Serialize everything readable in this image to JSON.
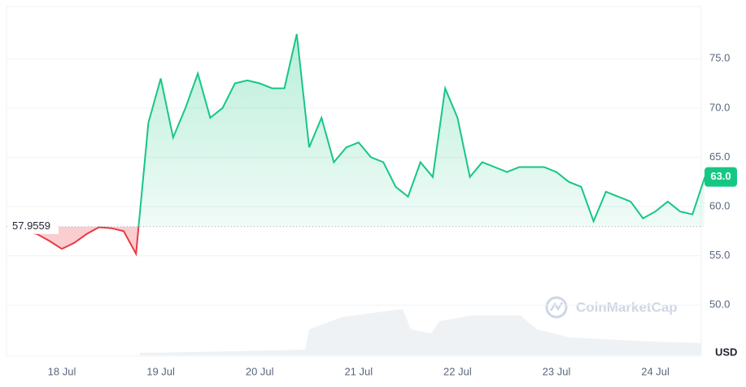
{
  "chart_data": {
    "type": "line",
    "categories": [
      null,
      null,
      null,
      null,
      "18 Jul",
      null,
      null,
      null,
      null,
      null,
      null,
      null,
      "19 Jul",
      null,
      null,
      null,
      null,
      null,
      null,
      null,
      "20 Jul",
      null,
      null,
      null,
      null,
      null,
      null,
      null,
      "21 Jul",
      null,
      null,
      null,
      null,
      null,
      null,
      null,
      "22 Jul",
      null,
      null,
      null,
      null,
      null,
      null,
      null,
      "23 Jul",
      null,
      null,
      null,
      null,
      null,
      null,
      null,
      "24 Jul",
      null,
      null,
      null,
      null
    ],
    "values": [
      57.9,
      57.5,
      57.2,
      56.5,
      55.7,
      56.3,
      57.2,
      57.9,
      57.8,
      57.5,
      55.2,
      68.5,
      73,
      67,
      70,
      73.5,
      69,
      70,
      72.5,
      72.8,
      72.5,
      72,
      72,
      77.5,
      66,
      69,
      64.5,
      66,
      66.5,
      65,
      64.5,
      62,
      61,
      64.5,
      63,
      72,
      69,
      63,
      64.5,
      64,
      63.5,
      64,
      64,
      64,
      63.5,
      62.5,
      62,
      58.5,
      61.5,
      61,
      60.5,
      58.8,
      59.5,
      60.5,
      59.5,
      59.2,
      63.0
    ],
    "value_labels": [
      null,
      null,
      null,
      null,
      null,
      null,
      null,
      null,
      null,
      null,
      null,
      null,
      null,
      null,
      null,
      null,
      null,
      null,
      null,
      null,
      null,
      null,
      null,
      null,
      null,
      null,
      null,
      null,
      null,
      null,
      null,
      null,
      null,
      null,
      null,
      null,
      null,
      null,
      null,
      null,
      null,
      null,
      null,
      null,
      null,
      null,
      null,
      null,
      null,
      null,
      null,
      null,
      null,
      null,
      null,
      null,
      "63.0"
    ],
    "baseline": 57.9559,
    "color_up": "#16c784",
    "color_down": "#ea3943",
    "ylim": [
      44.9,
      80.3
    ],
    "yticks": [
      {
        "value": 50,
        "label": "50.0"
      },
      {
        "value": 55,
        "label": "55.0"
      },
      {
        "value": 60,
        "label": "60.0"
      },
      {
        "value": 65,
        "label": "65.0"
      },
      {
        "value": 70,
        "label": "70.0"
      },
      {
        "value": 75,
        "label": "75.0"
      }
    ],
    "y_unit": "USD",
    "grid": true,
    "watermark": "CoinMarketCap"
  }
}
